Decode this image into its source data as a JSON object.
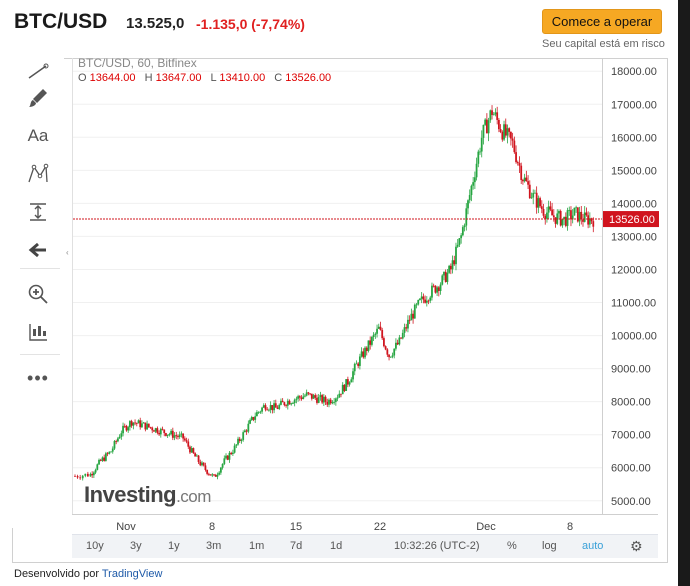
{
  "header": {
    "pair": "BTC/USD",
    "price": "13.525,0",
    "change": "-1.135,0 (-7,74%)",
    "cta_label": "Comece a operar",
    "risk_note": "Seu capital está em risco"
  },
  "chart": {
    "legend_title": "BTC/USD, 60, Bitfinex",
    "ohlc": {
      "o_label": "O",
      "o": "13644.00",
      "h_label": "H",
      "h": "13647.00",
      "l_label": "L",
      "l": "13410.00",
      "c_label": "C",
      "c": "13526.00"
    },
    "current_price_label": "13526.00",
    "logo_main": "Investing",
    "logo_suffix": ".com"
  },
  "chart_data": {
    "type": "line",
    "title": "BTC/USD, 60, Bitfinex",
    "y_ticks": [
      "18000.00",
      "17000.00",
      "16000.00",
      "15000.00",
      "14000.00",
      "13000.00",
      "12000.00",
      "11000.00",
      "10000.00",
      "9000.00",
      "8000.00",
      "7000.00",
      "6000.00",
      "5000.00"
    ],
    "x_ticks": [
      "Nov",
      "8",
      "15",
      "22",
      "Dec",
      "8"
    ],
    "ylim": [
      4600,
      18400
    ],
    "series": [
      {
        "x": [
          0,
          3,
          5,
          7,
          9,
          11,
          13,
          15,
          17,
          19,
          21,
          23,
          25,
          27,
          29,
          31,
          33,
          35,
          37,
          39,
          41,
          43,
          45,
          47,
          49,
          51,
          53,
          55,
          57,
          59,
          61,
          63,
          65,
          67,
          69,
          71,
          73,
          75,
          77,
          79,
          81,
          83,
          85,
          87,
          89,
          91,
          93,
          95,
          97,
          99,
          101
        ],
        "values": [
          5750,
          5800,
          6200,
          6500,
          7100,
          7400,
          7300,
          7200,
          7100,
          7000,
          6900,
          6400,
          6000,
          5700,
          6200,
          6600,
          7100,
          7600,
          7900,
          7800,
          8000,
          8100,
          8200,
          8100,
          8000,
          8200,
          8600,
          9200,
          9700,
          10200,
          9400,
          9800,
          10500,
          11000,
          11300,
          11600,
          12000,
          13000,
          14500,
          16000,
          16800,
          16200,
          15800,
          14800,
          14200,
          13800,
          13600,
          13500,
          13700,
          13526,
          13526
        ]
      }
    ]
  },
  "bottom": {
    "r10y": "10y",
    "r3y": "3y",
    "r1y": "1y",
    "r3m": "3m",
    "r1m": "1m",
    "r7d": "7d",
    "r1d": "1d",
    "time": "10:32:26 (UTC-2)",
    "pct": "%",
    "log": "log",
    "auto": "auto"
  },
  "credit": {
    "prefix": "Desenvolvido por",
    "link": "TradingView"
  },
  "colors": {
    "up": "#26a541",
    "down": "#d0141e",
    "price_line": "#d0141e",
    "cta": "#f6a823"
  }
}
